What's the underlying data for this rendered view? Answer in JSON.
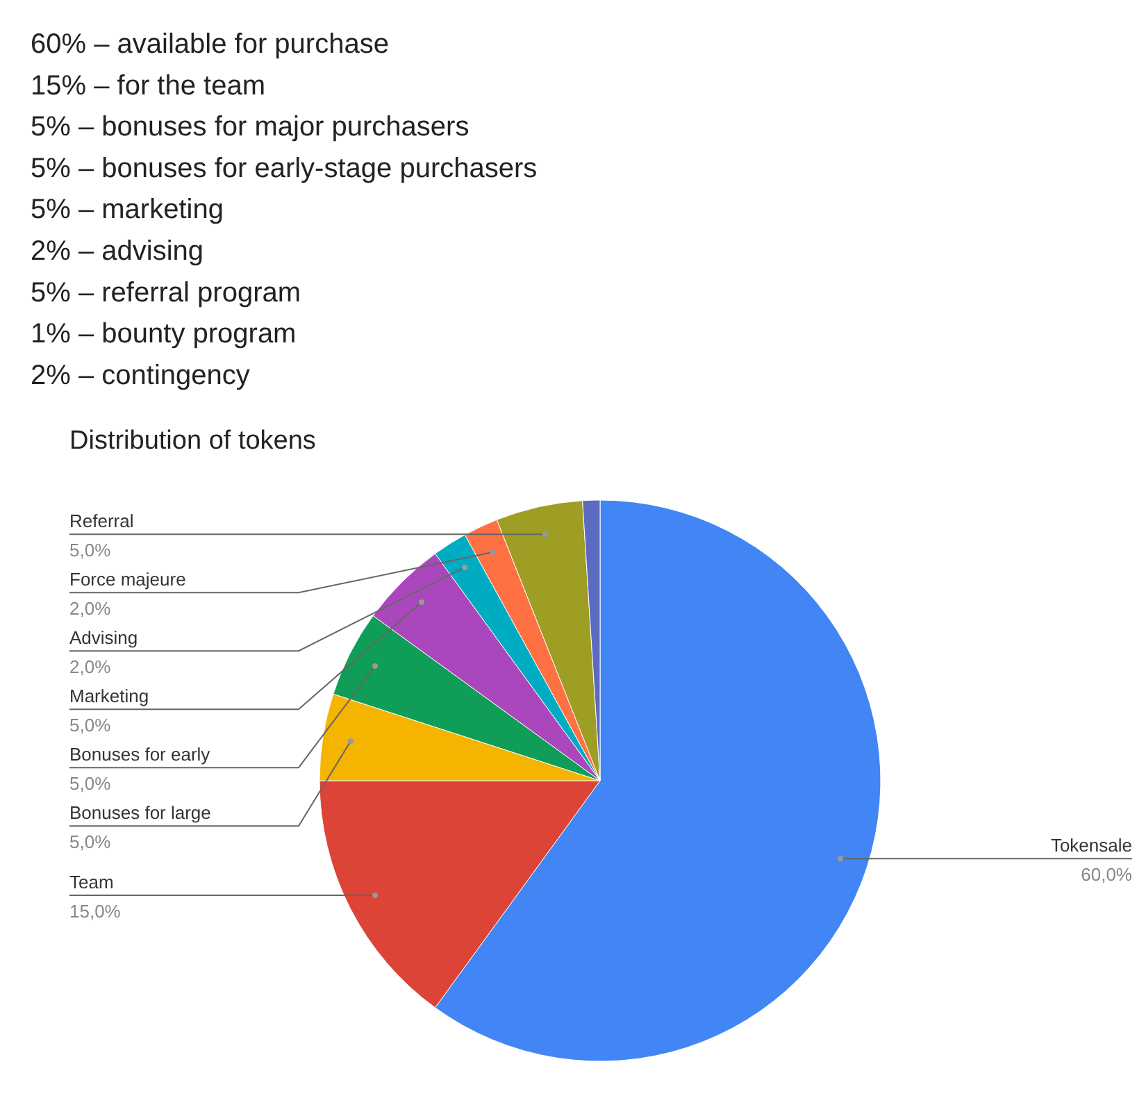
{
  "chart_data": {
    "type": "pie",
    "title": "Distribution of tokens",
    "annotations": [
      "60% – available for purchase",
      "15% – for the team",
      "5% – bonuses for major purchasers",
      "5% – bonuses for early-stage purchasers",
      "5% – marketing",
      "2% – advising",
      "5% – referral program",
      "1% – bounty program",
      "2% – contingency"
    ],
    "categories": [
      "Tokensale",
      "Team",
      "Bonuses for large",
      "Bonuses for early",
      "Marketing",
      "Advising",
      "Force majeure",
      "Referral",
      null
    ],
    "values": [
      60,
      15,
      5,
      5,
      5,
      2,
      2,
      5,
      1
    ],
    "value_labels": [
      "60,0%",
      "15,0%",
      "5,0%",
      "5,0%",
      "5,0%",
      "2,0%",
      "2,0%",
      "5,0%",
      null
    ],
    "colors": [
      "#4285f4",
      "#db4437",
      "#f4b400",
      "#0f9d58",
      "#ab47bc",
      "#00acc1",
      "#ff7043",
      "#9e9d24",
      "#5c6bc0"
    ]
  }
}
